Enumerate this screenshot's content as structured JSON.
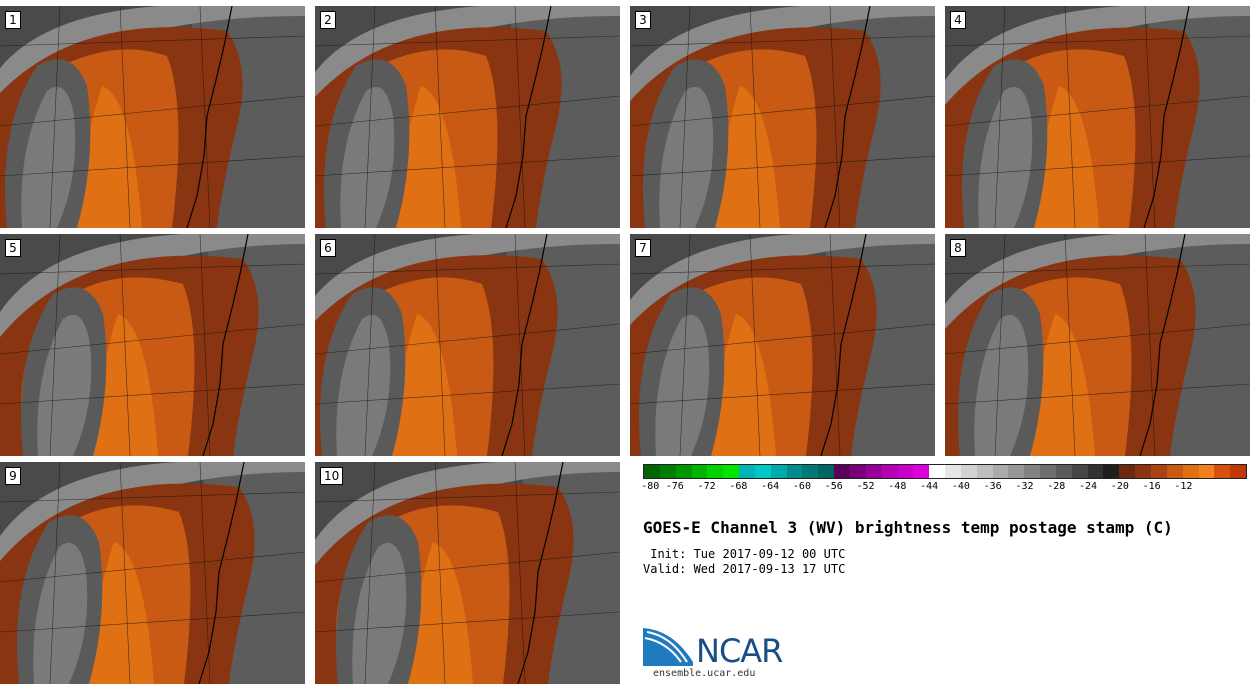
{
  "panels": [
    {
      "label": "1"
    },
    {
      "label": "2"
    },
    {
      "label": "3"
    },
    {
      "label": "4"
    },
    {
      "label": "5"
    },
    {
      "label": "6"
    },
    {
      "label": "7"
    },
    {
      "label": "8"
    },
    {
      "label": "9"
    },
    {
      "label": "10"
    }
  ],
  "colorbar": {
    "ticks": [
      "-80",
      "-76",
      "-72",
      "-68",
      "-64",
      "-60",
      "-56",
      "-52",
      "-48",
      "-44",
      "-40",
      "-36",
      "-32",
      "-28",
      "-24",
      "-20",
      "-16",
      "-12"
    ],
    "colors": [
      "#006400",
      "#007d00",
      "#009600",
      "#00b400",
      "#00d200",
      "#00e600",
      "#00b4b4",
      "#00c8c8",
      "#00aaaa",
      "#008c8c",
      "#007878",
      "#006464",
      "#5a005a",
      "#780078",
      "#960096",
      "#b400b4",
      "#c800c8",
      "#dc00dc",
      "#ffffff",
      "#e6e6e6",
      "#d2d2d2",
      "#bebebe",
      "#aaaaaa",
      "#969696",
      "#828282",
      "#6e6e6e",
      "#5a5a5a",
      "#464646",
      "#323232",
      "#1e1e1e",
      "#6b2a10",
      "#8a3512",
      "#a84414",
      "#c85a14",
      "#e07014",
      "#f08020",
      "#d85010",
      "#c03808"
    ]
  },
  "title": "GOES-E Channel 3 (WV) brightness temp postage stamp (C)",
  "init": " Init: Tue 2017-09-12 00 UTC",
  "valid": "Valid: Wed 2017-09-13 17 UTC",
  "logo": {
    "text": "NCAR",
    "url": "ensemble.ucar.edu",
    "color": "#1a4e86"
  }
}
